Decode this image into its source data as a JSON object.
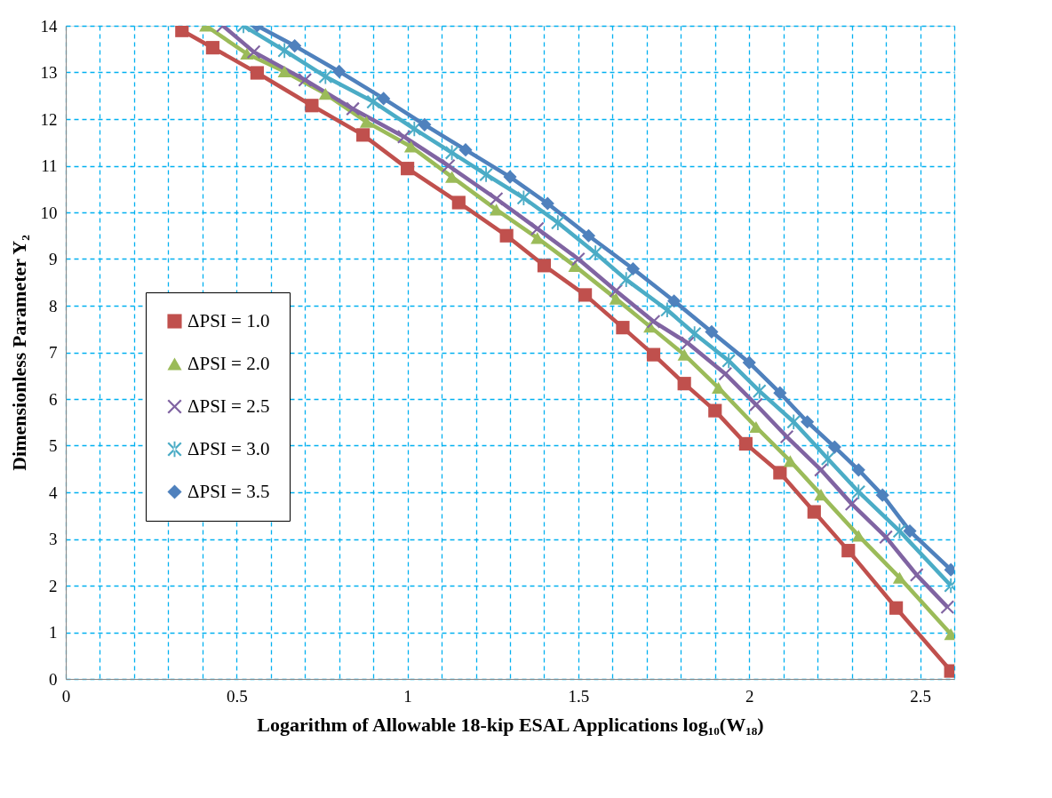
{
  "chart_data": {
    "type": "line",
    "xlabel": "Logarithm of Allowable 18-kip ESAL Applications log₁₀(W₁₈)",
    "ylabel": "Dimensionless Parameter Y₂",
    "xlim": [
      0,
      2.6
    ],
    "ylim": [
      0,
      14
    ],
    "xticks": [
      0,
      {
        "value": 0.1,
        "label": null
      },
      {
        "value": 0.2,
        "label": null
      },
      {
        "value": 0.3,
        "label": null
      },
      {
        "value": 0.4,
        "label": null
      },
      0.5,
      {
        "value": 0.6,
        "label": null
      },
      {
        "value": 0.7,
        "label": null
      },
      {
        "value": 0.8,
        "label": null
      },
      {
        "value": 0.9,
        "label": null
      },
      1,
      {
        "value": 1.1,
        "label": null
      },
      {
        "value": 1.2,
        "label": null
      },
      {
        "value": 1.3,
        "label": null
      },
      {
        "value": 1.4,
        "label": null
      },
      1.5,
      {
        "value": 1.6,
        "label": null
      },
      {
        "value": 1.7,
        "label": null
      },
      {
        "value": 1.8,
        "label": null
      },
      {
        "value": 1.9,
        "label": null
      },
      2,
      {
        "value": 2.1,
        "label": null
      },
      {
        "value": 2.2,
        "label": null
      },
      {
        "value": 2.3,
        "label": null
      },
      {
        "value": 2.4,
        "label": null
      },
      2.5,
      {
        "value": 2.6,
        "label": null
      }
    ],
    "yticks": [
      0,
      1,
      2,
      3,
      4,
      5,
      6,
      7,
      8,
      9,
      10,
      11,
      12,
      13,
      14
    ],
    "grid": true,
    "legend": "left",
    "line_style": "solid",
    "series": [
      {
        "name": "ΔPSI = 1.0",
        "color": "#c0504d",
        "marker": "square",
        "x": [
          0.34,
          0.43,
          0.56,
          0.72,
          0.87,
          1.0,
          1.15,
          1.29,
          1.4,
          1.52,
          1.63,
          1.72,
          1.81,
          1.9,
          1.99,
          2.09,
          2.19,
          2.29,
          2.43,
          2.59
        ],
        "values": [
          13.9,
          13.53,
          12.99,
          12.29,
          11.66,
          10.94,
          10.21,
          9.5,
          8.86,
          8.23,
          7.53,
          6.95,
          6.33,
          5.75,
          5.04,
          4.42,
          3.58,
          2.75,
          1.52,
          0.17
        ]
      },
      {
        "name": "ΔPSI = 2.0",
        "color": "#9bbb59",
        "marker": "triangle",
        "x": [
          0.41,
          0.53,
          0.64,
          0.76,
          0.88,
          1.01,
          1.13,
          1.26,
          1.38,
          1.49,
          1.61,
          1.71,
          1.81,
          1.91,
          2.02,
          2.12,
          2.21,
          2.32,
          2.44,
          2.59
        ],
        "values": [
          14.0,
          13.4,
          13.02,
          12.54,
          11.94,
          11.41,
          10.76,
          10.06,
          9.45,
          8.85,
          8.15,
          7.55,
          6.95,
          6.24,
          5.4,
          4.67,
          3.95,
          3.07,
          2.17,
          0.96
        ]
      },
      {
        "name": "ΔPSI = 2.5",
        "color": "#8064a2",
        "marker": "cross",
        "x": [
          0.46,
          0.55,
          0.7,
          0.84,
          0.99,
          1.12,
          1.26,
          1.38,
          1.5,
          1.61,
          1.72,
          1.82,
          1.93,
          2.02,
          2.11,
          2.21,
          2.3,
          2.4,
          2.49,
          2.58
        ],
        "values": [
          14.0,
          13.44,
          12.84,
          12.22,
          11.62,
          11.0,
          10.29,
          9.65,
          9.0,
          8.32,
          7.66,
          7.2,
          6.54,
          5.88,
          5.19,
          4.48,
          3.75,
          3.04,
          2.23,
          1.54
        ]
      },
      {
        "name": "ΔPSI = 3.0",
        "color": "#4bacc6",
        "marker": "star",
        "x": [
          0.52,
          0.64,
          0.76,
          0.9,
          1.02,
          1.13,
          1.23,
          1.34,
          1.44,
          1.55,
          1.64,
          1.76,
          1.84,
          1.94,
          2.03,
          2.13,
          2.23,
          2.32,
          2.44,
          2.59
        ],
        "values": [
          14.0,
          13.47,
          12.91,
          12.37,
          11.79,
          11.28,
          10.81,
          10.31,
          9.78,
          9.13,
          8.56,
          7.91,
          7.4,
          6.82,
          6.17,
          5.51,
          4.72,
          4.01,
          3.17,
          2.0
        ]
      },
      {
        "name": "ΔPSI = 3.5",
        "color": "#4f81bd",
        "marker": "diamond",
        "x": [
          0.56,
          0.67,
          0.8,
          0.93,
          1.05,
          1.17,
          1.3,
          1.41,
          1.53,
          1.66,
          1.78,
          1.89,
          2.0,
          2.09,
          2.17,
          2.25,
          2.32,
          2.39,
          2.47,
          2.59
        ],
        "values": [
          14.0,
          13.57,
          13.02,
          12.44,
          11.88,
          11.34,
          10.76,
          10.19,
          9.5,
          8.79,
          8.1,
          7.44,
          6.78,
          6.13,
          5.51,
          4.97,
          4.48,
          3.94,
          3.17,
          2.34
        ]
      }
    ]
  }
}
